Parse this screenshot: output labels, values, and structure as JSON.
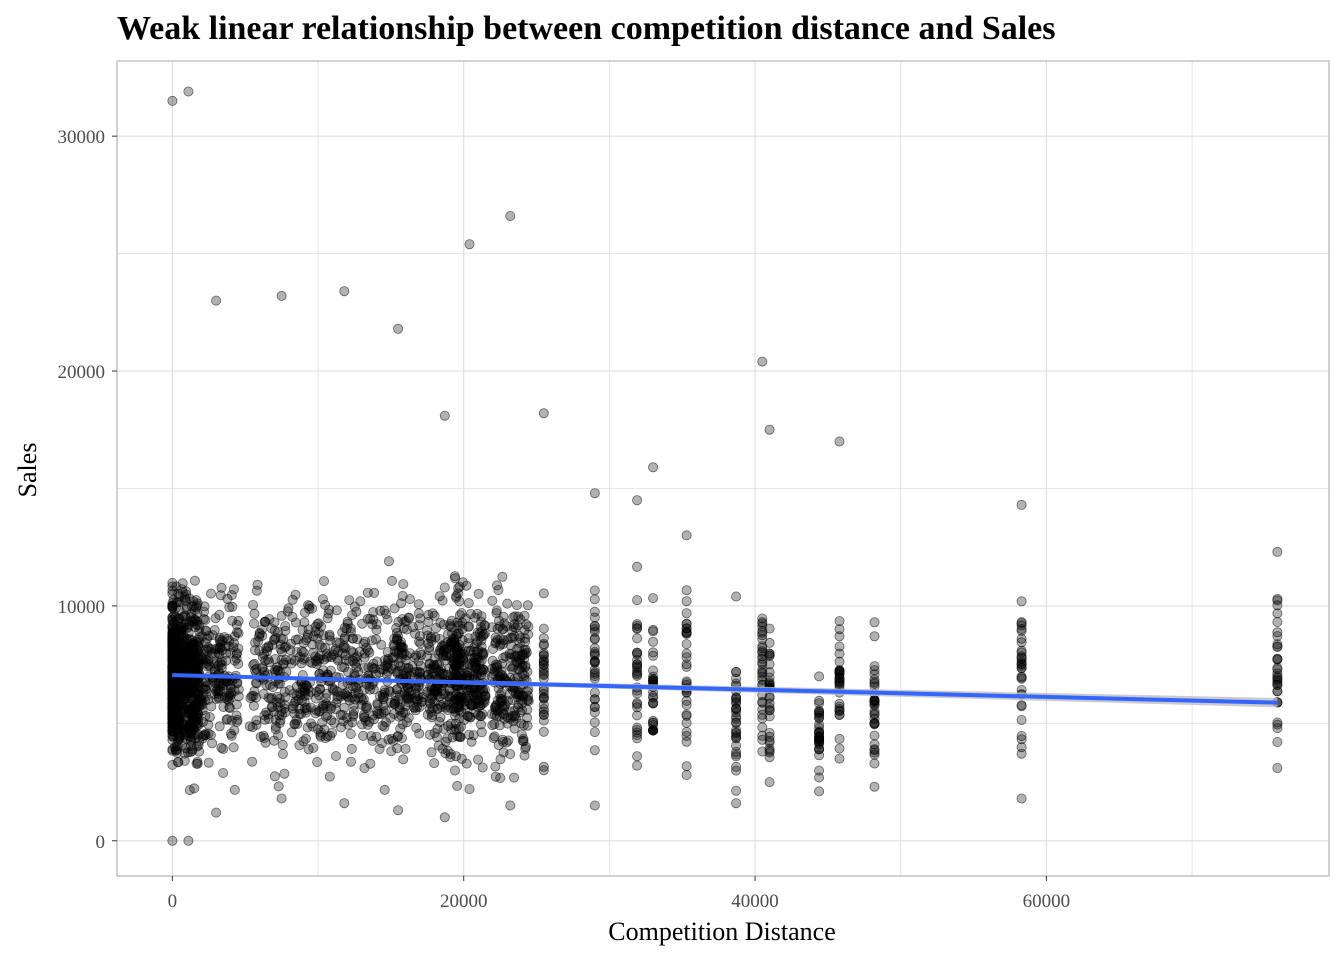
{
  "chart_data": {
    "type": "scatter",
    "title": "Weak linear relationship between competition distance and Sales",
    "xlabel": "Competition Distance",
    "ylabel": "Sales",
    "xlim": [
      -3800,
      79400
    ],
    "ylim": [
      -1500,
      33200
    ],
    "x_ticks": [
      0,
      20000,
      40000,
      60000
    ],
    "x_tick_labels": [
      "0",
      "20000",
      "40000",
      "60000"
    ],
    "x_minor_gridlines": [
      10000,
      30000,
      50000,
      70000
    ],
    "y_ticks": [
      0,
      10000,
      20000,
      30000
    ],
    "y_tick_labels": [
      "0",
      "10000",
      "20000",
      "30000"
    ],
    "y_minor_gridlines": [
      5000,
      15000,
      25000
    ],
    "grid": true,
    "legend": "none",
    "colors": {
      "points": "#000000",
      "point_opacity": 0.3,
      "trend_line": "#3366FF",
      "confidence_band": "#BEBEBE",
      "gridline": "#DEDEDE",
      "panel_border": "#B3B3B3"
    },
    "trend_line": {
      "method": "linear",
      "x": [
        0,
        75860
      ],
      "y": [
        7050,
        5880
      ]
    },
    "confidence_band": {
      "x": [
        0,
        75860
      ],
      "lower": [
        7000,
        5680
      ],
      "upper": [
        7100,
        6080
      ]
    },
    "point_summary": [
      {
        "x": 0,
        "y_min": 0,
        "y_max": 31500
      },
      {
        "x": 1100,
        "y_min": 0,
        "y_max": 31900
      },
      {
        "x": 3000,
        "y_min": 1200,
        "y_max": 23000
      },
      {
        "x": 7500,
        "y_min": 1800,
        "y_max": 23200
      },
      {
        "x": 11800,
        "y_min": 1600,
        "y_max": 23400
      },
      {
        "x": 15500,
        "y_min": 1300,
        "y_max": 21800
      },
      {
        "x": 18700,
        "y_min": 1000,
        "y_max": 18100
      },
      {
        "x": 20400,
        "y_min": 2200,
        "y_max": 25400
      },
      {
        "x": 23200,
        "y_min": 1500,
        "y_max": 26600
      },
      {
        "x": 25500,
        "y_min": 3000,
        "y_max": 18200
      },
      {
        "x": 29000,
        "y_min": 1500,
        "y_max": 14800
      },
      {
        "x": 31900,
        "y_min": 3200,
        "y_max": 14500
      },
      {
        "x": 33000,
        "y_min": 4700,
        "y_max": 15900
      },
      {
        "x": 35300,
        "y_min": 2800,
        "y_max": 13000
      },
      {
        "x": 38700,
        "y_min": 1600,
        "y_max": 10400
      },
      {
        "x": 40500,
        "y_min": 3800,
        "y_max": 20400
      },
      {
        "x": 41000,
        "y_min": 2500,
        "y_max": 17500
      },
      {
        "x": 44400,
        "y_min": 2100,
        "y_max": 7000
      },
      {
        "x": 45800,
        "y_min": 3500,
        "y_max": 17000
      },
      {
        "x": 48200,
        "y_min": 2300,
        "y_max": 9300
      },
      {
        "x": 58300,
        "y_min": 1800,
        "y_max": 14300
      },
      {
        "x": 75860,
        "y_min": 3100,
        "y_max": 12300
      }
    ]
  }
}
